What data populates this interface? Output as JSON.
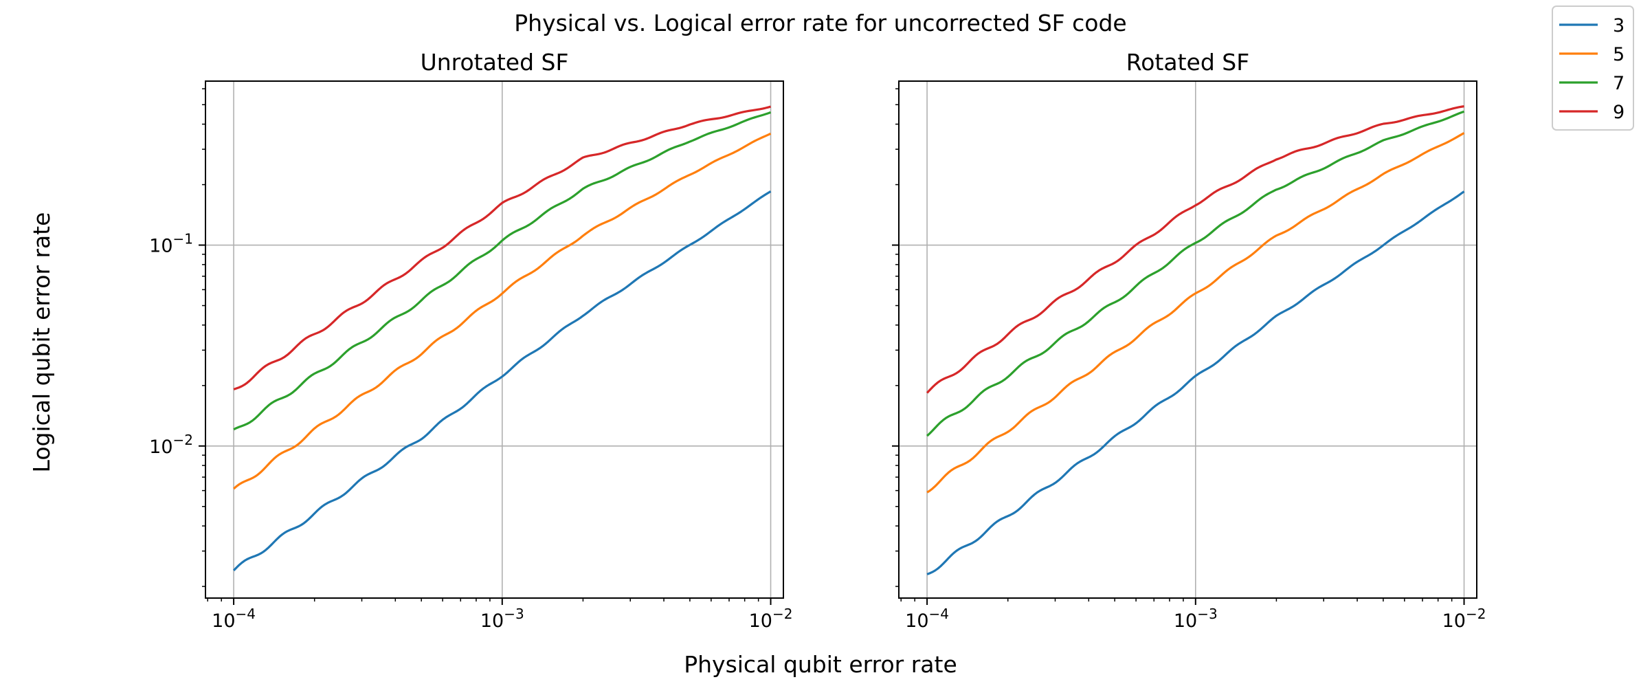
{
  "figure": {
    "suptitle": "Physical vs. Logical error rate for uncorrected SF code",
    "xlabel": "Physical qubit error rate",
    "ylabel": "Logical qubit error rate"
  },
  "legend": {
    "placement": "top-right",
    "entries": [
      {
        "label": "3",
        "color": "#1f77b4"
      },
      {
        "label": "5",
        "color": "#ff7f0e"
      },
      {
        "label": "7",
        "color": "#2ca02c"
      },
      {
        "label": "9",
        "color": "#d62728"
      }
    ]
  },
  "ticks": {
    "x": [
      {
        "value": 0.0001,
        "exp": "−4"
      },
      {
        "value": 0.001,
        "exp": "−3"
      },
      {
        "value": 0.01,
        "exp": "−2"
      }
    ],
    "y": [
      {
        "value": 0.01,
        "exp": "−2"
      },
      {
        "value": 0.1,
        "exp": "−1"
      }
    ],
    "base": "10"
  },
  "chart_data": [
    {
      "type": "line",
      "title": "Unrotated SF",
      "x_scale": "log",
      "y_scale": "log",
      "xlim": [
        7.85e-05,
        0.01115
      ],
      "ylim": [
        0.00175,
        0.655
      ],
      "grid": true,
      "x": [
        0.0001,
        0.0002,
        0.0005,
        0.001,
        0.002,
        0.005,
        0.01
      ],
      "series": [
        {
          "name": "3",
          "color": "#1f77b4",
          "values": [
            0.0024,
            0.0046,
            0.011,
            0.0225,
            0.045,
            0.1,
            0.185
          ]
        },
        {
          "name": "5",
          "color": "#ff7f0e",
          "values": [
            0.006,
            0.012,
            0.029,
            0.058,
            0.112,
            0.225,
            0.36
          ]
        },
        {
          "name": "7",
          "color": "#2ca02c",
          "values": [
            0.0118,
            0.0225,
            0.053,
            0.105,
            0.19,
            0.33,
            0.46
          ]
        },
        {
          "name": "9",
          "color": "#d62728",
          "values": [
            0.019,
            0.036,
            0.083,
            0.16,
            0.27,
            0.4,
            0.49
          ]
        }
      ]
    },
    {
      "type": "line",
      "title": "Rotated SF",
      "x_scale": "log",
      "y_scale": "log",
      "xlim": [
        7.85e-05,
        0.01115
      ],
      "ylim": [
        0.00175,
        0.655
      ],
      "grid": true,
      "x": [
        0.0001,
        0.0002,
        0.0005,
        0.001,
        0.002,
        0.005,
        0.01
      ],
      "series": [
        {
          "name": "3",
          "color": "#1f77b4",
          "values": [
            0.0023,
            0.0045,
            0.011,
            0.022,
            0.044,
            0.1,
            0.185
          ]
        },
        {
          "name": "5",
          "color": "#ff7f0e",
          "values": [
            0.006,
            0.012,
            0.029,
            0.057,
            0.111,
            0.225,
            0.36
          ]
        },
        {
          "name": "7",
          "color": "#2ca02c",
          "values": [
            0.0115,
            0.0225,
            0.052,
            0.103,
            0.19,
            0.33,
            0.46
          ]
        },
        {
          "name": "9",
          "color": "#d62728",
          "values": [
            0.0185,
            0.036,
            0.083,
            0.16,
            0.27,
            0.4,
            0.49
          ]
        }
      ]
    }
  ]
}
